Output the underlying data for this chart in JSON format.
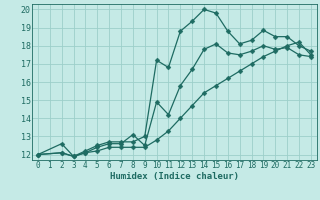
{
  "xlabel": "Humidex (Indice chaleur)",
  "bg_color": "#c5eae6",
  "grid_color": "#9dcfca",
  "line_color": "#1e6b62",
  "xlim": [
    -0.5,
    23.5
  ],
  "ylim": [
    11.7,
    20.3
  ],
  "xticks": [
    0,
    1,
    2,
    3,
    4,
    5,
    6,
    7,
    8,
    9,
    10,
    11,
    12,
    13,
    14,
    15,
    16,
    17,
    18,
    19,
    20,
    21,
    22,
    23
  ],
  "yticks": [
    12,
    13,
    14,
    15,
    16,
    17,
    18,
    19,
    20
  ],
  "line1_x": [
    0,
    2,
    3,
    4,
    5,
    6,
    7,
    8,
    9,
    10,
    11,
    12,
    13,
    14,
    15,
    16,
    17,
    18,
    19,
    20,
    21,
    22,
    23
  ],
  "line1_y": [
    12.0,
    12.6,
    11.9,
    12.2,
    12.5,
    12.7,
    12.7,
    12.7,
    13.0,
    17.2,
    16.8,
    18.8,
    19.35,
    20.0,
    19.8,
    18.8,
    18.1,
    18.3,
    18.85,
    18.5,
    18.5,
    18.0,
    17.7
  ],
  "line2_x": [
    0,
    2,
    3,
    4,
    5,
    6,
    7,
    8,
    9,
    10,
    11,
    12,
    13,
    14,
    15,
    16,
    17,
    18,
    19,
    20,
    21,
    22,
    23
  ],
  "line2_y": [
    12.0,
    12.1,
    11.9,
    12.1,
    12.4,
    12.6,
    12.6,
    13.1,
    12.5,
    14.9,
    14.2,
    15.8,
    16.7,
    17.8,
    18.1,
    17.6,
    17.5,
    17.7,
    18.0,
    17.8,
    17.9,
    17.5,
    17.4
  ],
  "line3_x": [
    0,
    2,
    3,
    4,
    5,
    6,
    7,
    8,
    9,
    10,
    11,
    12,
    13,
    14,
    15,
    16,
    17,
    18,
    19,
    20,
    21,
    22,
    23
  ],
  "line3_y": [
    12.0,
    12.1,
    11.9,
    12.1,
    12.2,
    12.4,
    12.4,
    12.4,
    12.4,
    12.8,
    13.3,
    14.0,
    14.7,
    15.4,
    15.8,
    16.2,
    16.6,
    17.0,
    17.4,
    17.7,
    18.0,
    18.2,
    17.5
  ],
  "markersize": 2.5,
  "linewidth": 0.9,
  "xlabel_fontsize": 6.5,
  "tick_fontsize": 5.5
}
